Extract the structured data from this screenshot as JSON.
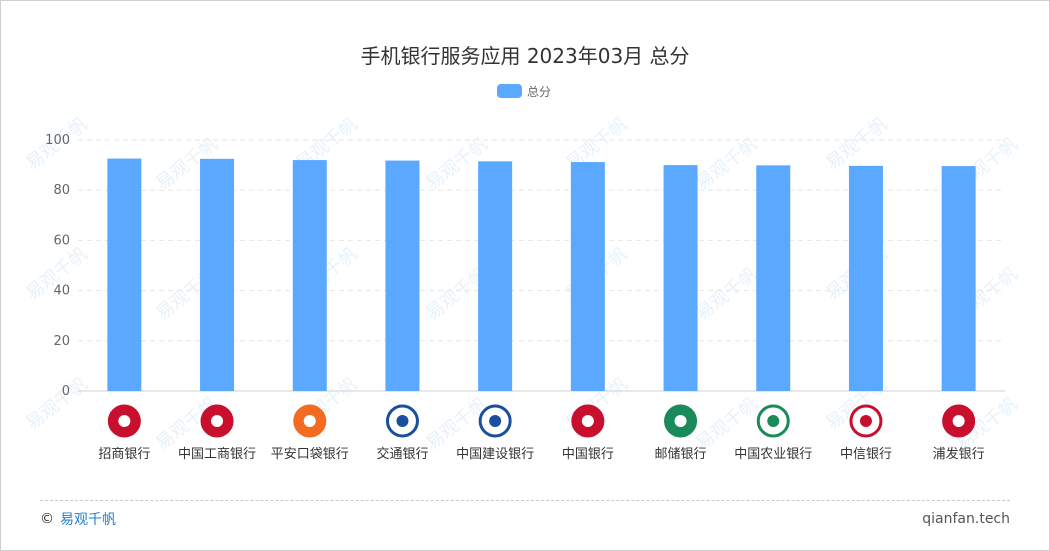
{
  "chart_data": {
    "type": "bar",
    "title": "手机银行服务应用 2023年03月 总分",
    "categories": [
      "招商银行",
      "中国工商银行",
      "平安口袋银行",
      "交通银行",
      "中国建设银行",
      "中国银行",
      "邮储银行",
      "中国农业银行",
      "中信银行",
      "浦发银行"
    ],
    "series": [
      {
        "name": "总分",
        "values": [
          92.6,
          92.5,
          92.0,
          91.8,
          91.5,
          91.2,
          90.0,
          89.9,
          89.7,
          89.6
        ],
        "color": "#5aa8ff"
      }
    ],
    "y_ticks": [
      "0",
      "20",
      "40",
      "60",
      "80",
      "100"
    ],
    "ylim": [
      0,
      100
    ],
    "grid": true,
    "legend_position": "top-center",
    "icons": [
      "cmb-logo",
      "icbc-logo",
      "pingan-logo",
      "bocom-logo",
      "ccb-logo",
      "boc-logo",
      "psbc-logo",
      "abc-logo",
      "citic-logo",
      "spdb-logo"
    ]
  },
  "footer": {
    "copyright_symbol": "©",
    "brand": "易观千帆",
    "site": "qianfan.tech"
  },
  "watermark": {
    "text": "易观千帆"
  }
}
